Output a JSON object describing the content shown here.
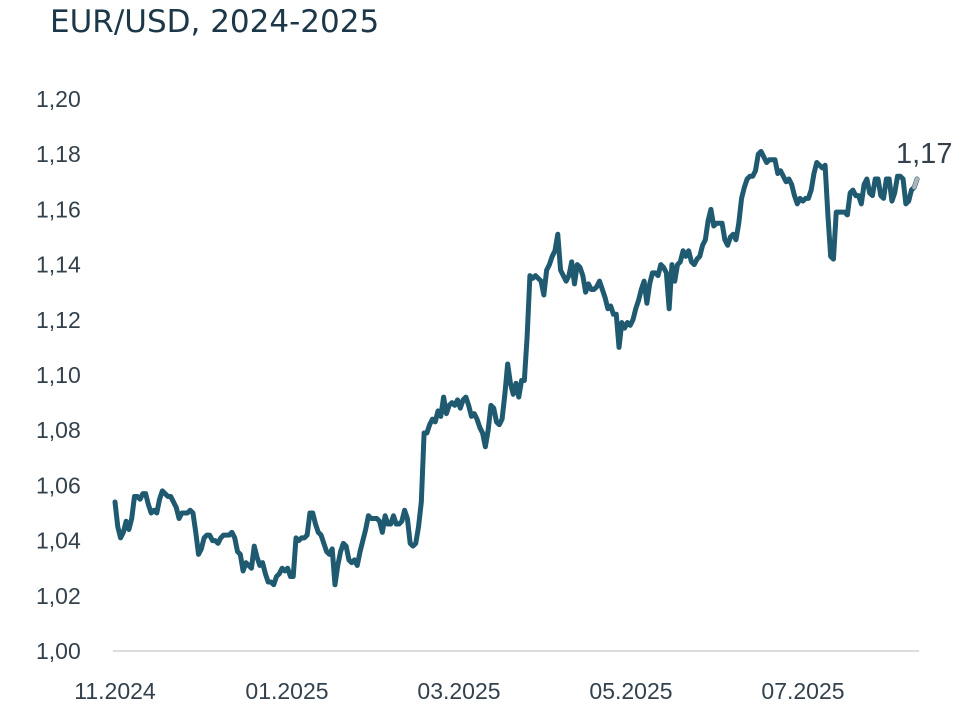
{
  "chart_data": {
    "type": "line",
    "title": "EUR/USD, 2024-2025",
    "xlabel": "",
    "ylabel": "",
    "ylim": [
      1.0,
      1.2
    ],
    "y_ticks": [
      "1,00",
      "1,02",
      "1,04",
      "1,06",
      "1,08",
      "1,10",
      "1,12",
      "1,14",
      "1,16",
      "1,18",
      "1,20"
    ],
    "x_ticks": [
      "11.2024",
      "01.2025",
      "03.2025",
      "05.2025",
      "07.2025"
    ],
    "last_value_label": "1,17",
    "grid": false,
    "colors": {
      "line": "#1f5a70",
      "axis": "#c8c8c8",
      "text": "#33414c",
      "title": "#1c3748"
    },
    "series": [
      {
        "name": "",
        "values": [
          1.054,
          1.045,
          1.041,
          1.043,
          1.047,
          1.044,
          1.048,
          1.056,
          1.056,
          1.055,
          1.057,
          1.057,
          1.053,
          1.05,
          1.051,
          1.05,
          1.055,
          1.058,
          1.057,
          1.056,
          1.056,
          1.054,
          1.052,
          1.048,
          1.05,
          1.05,
          1.05,
          1.051,
          1.05,
          1.043,
          1.035,
          1.037,
          1.041,
          1.042,
          1.042,
          1.04,
          1.04,
          1.039,
          1.041,
          1.042,
          1.042,
          1.042,
          1.043,
          1.041,
          1.036,
          1.035,
          1.029,
          1.032,
          1.031,
          1.03,
          1.038,
          1.034,
          1.031,
          1.032,
          1.028,
          1.025,
          1.025,
          1.024,
          1.027,
          1.028,
          1.03,
          1.029,
          1.03,
          1.027,
          1.027,
          1.041,
          1.04,
          1.041,
          1.041,
          1.042,
          1.05,
          1.05,
          1.046,
          1.043,
          1.042,
          1.039,
          1.036,
          1.035,
          1.037,
          1.024,
          1.031,
          1.036,
          1.039,
          1.038,
          1.033,
          1.032,
          1.033,
          1.031,
          1.036,
          1.04,
          1.044,
          1.049,
          1.048,
          1.048,
          1.048,
          1.047,
          1.043,
          1.049,
          1.046,
          1.046,
          1.049,
          1.046,
          1.046,
          1.047,
          1.051,
          1.048,
          1.039,
          1.038,
          1.039,
          1.045,
          1.054,
          1.079,
          1.079,
          1.082,
          1.084,
          1.083,
          1.087,
          1.085,
          1.092,
          1.086,
          1.089,
          1.09,
          1.089,
          1.091,
          1.088,
          1.091,
          1.092,
          1.089,
          1.085,
          1.086,
          1.084,
          1.081,
          1.079,
          1.074,
          1.08,
          1.089,
          1.088,
          1.083,
          1.082,
          1.084,
          1.093,
          1.104,
          1.097,
          1.093,
          1.097,
          1.092,
          1.098,
          1.098,
          1.114,
          1.136,
          1.135,
          1.136,
          1.135,
          1.134,
          1.129,
          1.138,
          1.14,
          1.143,
          1.145,
          1.151,
          1.138,
          1.136,
          1.134,
          1.136,
          1.141,
          1.133,
          1.14,
          1.139,
          1.136,
          1.13,
          1.133,
          1.131,
          1.131,
          1.132,
          1.134,
          1.131,
          1.128,
          1.124,
          1.125,
          1.122,
          1.122,
          1.11,
          1.119,
          1.117,
          1.119,
          1.118,
          1.12,
          1.124,
          1.127,
          1.131,
          1.134,
          1.126,
          1.133,
          1.137,
          1.137,
          1.136,
          1.14,
          1.139,
          1.137,
          1.124,
          1.14,
          1.134,
          1.14,
          1.141,
          1.145,
          1.143,
          1.145,
          1.141,
          1.14,
          1.142,
          1.143,
          1.147,
          1.149,
          1.156,
          1.16,
          1.154,
          1.155,
          1.155,
          1.155,
          1.149,
          1.147,
          1.15,
          1.151,
          1.149,
          1.155,
          1.164,
          1.168,
          1.171,
          1.172,
          1.172,
          1.174,
          1.18,
          1.181,
          1.179,
          1.177,
          1.178,
          1.178,
          1.178,
          1.173,
          1.174,
          1.172,
          1.17,
          1.171,
          1.169,
          1.165,
          1.162,
          1.164,
          1.163,
          1.164,
          1.164,
          1.167,
          1.173,
          1.177,
          1.176,
          1.175,
          1.176,
          1.158,
          1.143,
          1.142,
          1.159,
          1.159,
          1.159,
          1.159,
          1.158,
          1.166,
          1.167,
          1.165,
          1.165,
          1.162,
          1.169,
          1.171,
          1.166,
          1.165,
          1.171,
          1.171,
          1.165,
          1.164,
          1.171,
          1.171,
          1.163,
          1.166,
          1.172,
          1.172,
          1.171,
          1.162,
          1.163,
          1.167,
          1.168,
          1.171
        ]
      }
    ]
  }
}
